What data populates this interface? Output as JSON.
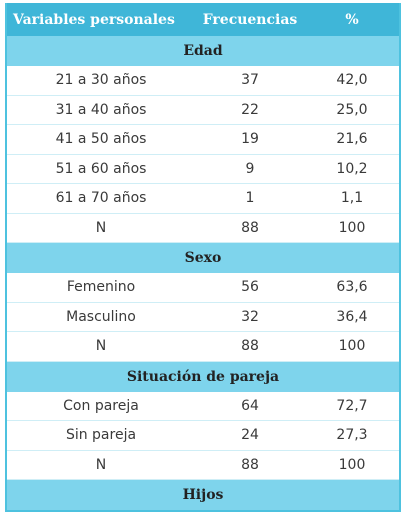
{
  "header": {
    "col1": "Variables personales",
    "col2": "Frecuencias",
    "col3": "%"
  },
  "sections": [
    {
      "title": "Edad",
      "rows": [
        [
          "21 a 30 años",
          "37",
          "42,0"
        ],
        [
          "31 a 40 años",
          "22",
          "25,0"
        ],
        [
          "41 a 50 años",
          "19",
          "21,6"
        ],
        [
          "51 a 60 años",
          "9",
          "10,2"
        ],
        [
          "61 a 70 años",
          "1",
          "1,1"
        ],
        [
          "N",
          "88",
          "100"
        ]
      ]
    },
    {
      "title": "Sexo",
      "rows": [
        [
          "Femenino",
          "56",
          "63,6"
        ],
        [
          "Masculino",
          "32",
          "36,4"
        ],
        [
          "N",
          "88",
          "100"
        ]
      ]
    },
    {
      "title": "Situación de pareja",
      "rows": [
        [
          "Con pareja",
          "64",
          "72,7"
        ],
        [
          "Sin pareja",
          "24",
          "27,3"
        ],
        [
          "N",
          "88",
          "100"
        ]
      ]
    },
    {
      "title": "Hijos",
      "rows": []
    }
  ]
}
